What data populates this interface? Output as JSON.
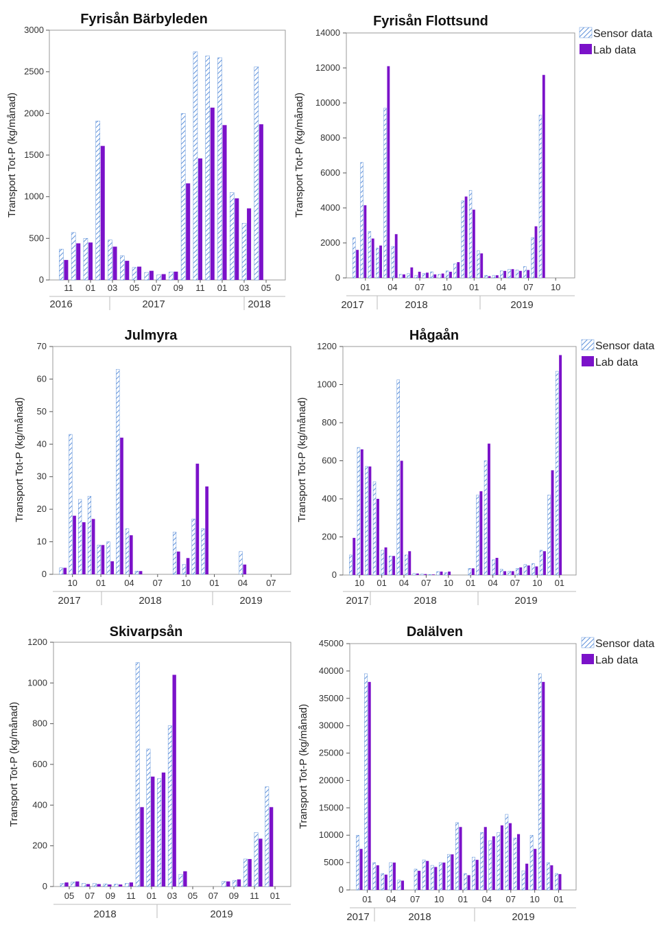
{
  "legend": {
    "sensor": "Sensor data",
    "lab": "Lab data"
  },
  "colors": {
    "sensor_stripe": "#5b8fd9",
    "lab": "#7b12c9",
    "frame": "#999999"
  },
  "chart_data": [
    {
      "type": "bar",
      "title": "Fyrisån Bärbyleden",
      "ylabel": "Transport Tot-P (kg/månad)",
      "ylim": [
        0,
        3000
      ],
      "yticks": [
        0,
        500,
        1000,
        1500,
        2000,
        2500,
        3000
      ],
      "xticks": [
        "11",
        "01",
        "03",
        "05",
        "07",
        "09",
        "11",
        "01",
        "03",
        "05"
      ],
      "years": [
        "2016",
        "2017",
        "2018"
      ],
      "legend_visible": false,
      "categories": [
        "2016-11",
        "2016-12",
        "2017-01",
        "2017-02",
        "2017-03",
        "2017-04",
        "2017-05",
        "2017-06",
        "2017-07",
        "2017-08",
        "2017-09",
        "2017-10",
        "2017-11",
        "2017-12",
        "2018-01",
        "2018-02",
        "2018-03",
        "2018-04"
      ],
      "series": [
        {
          "name": "Sensor data",
          "values": [
            370,
            570,
            500,
            1910,
            480,
            290,
            150,
            90,
            60,
            95,
            2000,
            2740,
            2690,
            2670,
            1050,
            680,
            2560,
            null
          ]
        },
        {
          "name": "Lab data",
          "values": [
            240,
            440,
            450,
            1610,
            400,
            230,
            160,
            110,
            70,
            100,
            1160,
            1460,
            2070,
            1860,
            980,
            860,
            1870,
            null
          ]
        }
      ]
    },
    {
      "type": "bar",
      "title": "Fyrisån Flottsund",
      "ylabel": "Transport Tot-P (kg/månad)",
      "ylim": [
        0,
        14000
      ],
      "yticks": [
        0,
        2000,
        4000,
        6000,
        8000,
        10000,
        12000,
        14000
      ],
      "xticks": [
        "01",
        "04",
        "07",
        "10",
        "01",
        "04",
        "07",
        "10"
      ],
      "years": [
        "2017",
        "2018",
        "2019"
      ],
      "legend_visible": true,
      "categories": [
        "2017-11",
        "2017-12",
        "2018-01",
        "2018-02",
        "2018-03",
        "2018-04",
        "2018-05",
        "2018-06",
        "2018-07",
        "2018-08",
        "2018-09",
        "2018-10",
        "2018-11",
        "2018-12",
        "2019-01",
        "2019-02",
        "2019-03",
        "2019-04",
        "2019-05",
        "2019-06",
        "2019-07",
        "2019-08",
        "2019-09",
        "2019-10",
        "2019-11",
        "2019-12",
        "2020-01",
        "2020-02"
      ],
      "series": [
        {
          "name": "Sensor data",
          "values": [
            2300,
            6600,
            2650,
            1700,
            9700,
            1800,
            200,
            250,
            150,
            250,
            350,
            200,
            400,
            800,
            4400,
            5000,
            1550,
            150,
            150,
            400,
            500,
            450,
            650,
            2300,
            9300,
            null,
            null,
            null
          ]
        },
        {
          "name": "Lab data",
          "values": [
            1600,
            4150,
            2250,
            1850,
            12100,
            2500,
            200,
            600,
            350,
            300,
            200,
            250,
            350,
            900,
            4650,
            3900,
            1400,
            100,
            150,
            400,
            500,
            400,
            450,
            2950,
            11600,
            null,
            null,
            null
          ]
        }
      ]
    },
    {
      "type": "bar",
      "title": "Julmyra",
      "ylabel": "Transport Tot-P (kg/månad)",
      "ylim": [
        0,
        70
      ],
      "yticks": [
        0,
        10,
        20,
        30,
        40,
        50,
        60,
        70
      ],
      "xticks": [
        "10",
        "01",
        "04",
        "07",
        "10",
        "01",
        "04",
        "07"
      ],
      "years": [
        "2017",
        "2018",
        "2019"
      ],
      "legend_visible": false,
      "categories": [
        "2017-09",
        "2017-10",
        "2017-11",
        "2017-12",
        "2018-01",
        "2018-02",
        "2018-03",
        "2018-04",
        "2018-05",
        "2018-06",
        "2018-07",
        "2018-08",
        "2018-09",
        "2018-10",
        "2018-11",
        "2018-12",
        "2019-01",
        "2019-02",
        "2019-03",
        "2019-04",
        "2019-05",
        "2019-06",
        "2019-07",
        "2019-08"
      ],
      "series": [
        {
          "name": "Sensor data",
          "values": [
            2,
            43,
            23,
            24,
            9,
            10,
            63,
            14,
            1,
            0,
            0,
            0,
            13,
            3,
            17,
            14,
            0,
            0,
            0,
            7,
            null,
            null,
            null,
            null
          ]
        },
        {
          "name": "Lab data",
          "values": [
            2,
            18,
            16,
            17,
            9,
            4,
            42,
            12,
            1,
            0,
            0,
            0,
            7,
            5,
            34,
            27,
            0,
            0,
            0,
            3,
            null,
            null,
            null,
            null
          ]
        }
      ]
    },
    {
      "type": "bar",
      "title": "Hågaån",
      "ylabel": "Transport Tot-P (kg/månad)",
      "ylim": [
        0,
        1200
      ],
      "yticks": [
        0,
        200,
        400,
        600,
        800,
        1000,
        1200
      ],
      "xticks": [
        "10",
        "01",
        "04",
        "07",
        "10",
        "01",
        "04",
        "07",
        "10",
        "01"
      ],
      "years": [
        "2017",
        "2018",
        "2019"
      ],
      "legend_visible": true,
      "categories": [
        "2017-10",
        "2017-11",
        "2017-12",
        "2018-01",
        "2018-02",
        "2018-03",
        "2018-04",
        "2018-05",
        "2018-06",
        "2018-07",
        "2018-08",
        "2018-09",
        "2018-10",
        "2018-11",
        "2018-12",
        "2019-01",
        "2019-02",
        "2019-03",
        "2019-04",
        "2019-05",
        "2019-06",
        "2019-07",
        "2019-08",
        "2019-09",
        "2019-10",
        "2019-11",
        "2019-12",
        "2020-01"
      ],
      "series": [
        {
          "name": "Sensor data",
          "values": [
            105,
            670,
            570,
            490,
            130,
            100,
            1025,
            105,
            8,
            5,
            3,
            18,
            12,
            0,
            0,
            35,
            420,
            600,
            80,
            30,
            20,
            35,
            55,
            60,
            130,
            420,
            1070,
            null
          ]
        },
        {
          "name": "Lab data",
          "values": [
            195,
            660,
            570,
            400,
            145,
            100,
            600,
            125,
            8,
            5,
            3,
            18,
            18,
            0,
            0,
            35,
            440,
            690,
            90,
            20,
            20,
            40,
            50,
            45,
            125,
            550,
            1155,
            null
          ]
        }
      ]
    },
    {
      "type": "bar",
      "title": "Skivarpsån",
      "ylabel": "Transport Tot-P (kg/månad)",
      "ylim": [
        0,
        1200
      ],
      "yticks": [
        0,
        200,
        400,
        600,
        800,
        1000,
        1200
      ],
      "xticks": [
        "05",
        "07",
        "09",
        "11",
        "01",
        "03",
        "05",
        "07",
        "09",
        "11",
        "01"
      ],
      "years": [
        "2018",
        "2019"
      ],
      "legend_visible": false,
      "categories": [
        "2018-05",
        "2018-06",
        "2018-07",
        "2018-08",
        "2018-09",
        "2018-10",
        "2018-11",
        "2018-12",
        "2019-01",
        "2019-02",
        "2019-03",
        "2019-04",
        "2019-05",
        "2019-06",
        "2019-07",
        "2019-08",
        "2019-09",
        "2019-10",
        "2019-11",
        "2019-12",
        "2020-01"
      ],
      "series": [
        {
          "name": "Sensor data",
          "values": [
            15,
            22,
            15,
            15,
            13,
            12,
            15,
            1100,
            675,
            530,
            790,
            60,
            0,
            0,
            0,
            25,
            30,
            135,
            265,
            490,
            null
          ]
        },
        {
          "name": "Lab data",
          "values": [
            20,
            25,
            12,
            12,
            10,
            10,
            20,
            390,
            540,
            560,
            1040,
            75,
            0,
            0,
            0,
            25,
            35,
            135,
            235,
            390,
            null
          ]
        }
      ]
    },
    {
      "type": "bar",
      "title": "Dalälven",
      "ylabel": "Transport Tot-P (kg/månad)",
      "ylim": [
        0,
        45000
      ],
      "yticks": [
        0,
        5000,
        10000,
        15000,
        20000,
        25000,
        30000,
        35000,
        40000,
        45000
      ],
      "xticks": [
        "01",
        "04",
        "07",
        "10",
        "01",
        "04",
        "07",
        "10",
        "01"
      ],
      "years": [
        "2017",
        "2018",
        "2019"
      ],
      "legend_visible": true,
      "categories": [
        "2017-12",
        "2018-01",
        "2018-02",
        "2018-03",
        "2018-04",
        "2018-05",
        "2018-06",
        "2018-07",
        "2018-08",
        "2018-09",
        "2018-10",
        "2018-11",
        "2018-12",
        "2019-01",
        "2019-02",
        "2019-03",
        "2019-04",
        "2019-05",
        "2019-06",
        "2019-07",
        "2019-08",
        "2019-09",
        "2019-10",
        "2019-11",
        "2019-12",
        "2020-01"
      ],
      "series": [
        {
          "name": "Sensor data",
          "values": [
            10000,
            39500,
            5000,
            3000,
            5000,
            1800,
            0,
            3800,
            5500,
            4500,
            5000,
            6500,
            12300,
            3000,
            6000,
            10500,
            9000,
            10500,
            13800,
            9500,
            3500,
            10000,
            39500,
            5000,
            3000,
            null
          ]
        },
        {
          "name": "Lab data",
          "values": [
            7500,
            38000,
            4500,
            2800,
            5000,
            1700,
            0,
            3500,
            5300,
            4200,
            5000,
            6500,
            11500,
            2700,
            5500,
            11500,
            9800,
            11800,
            12200,
            10200,
            4800,
            7500,
            38000,
            4500,
            2900,
            null
          ]
        }
      ]
    }
  ]
}
